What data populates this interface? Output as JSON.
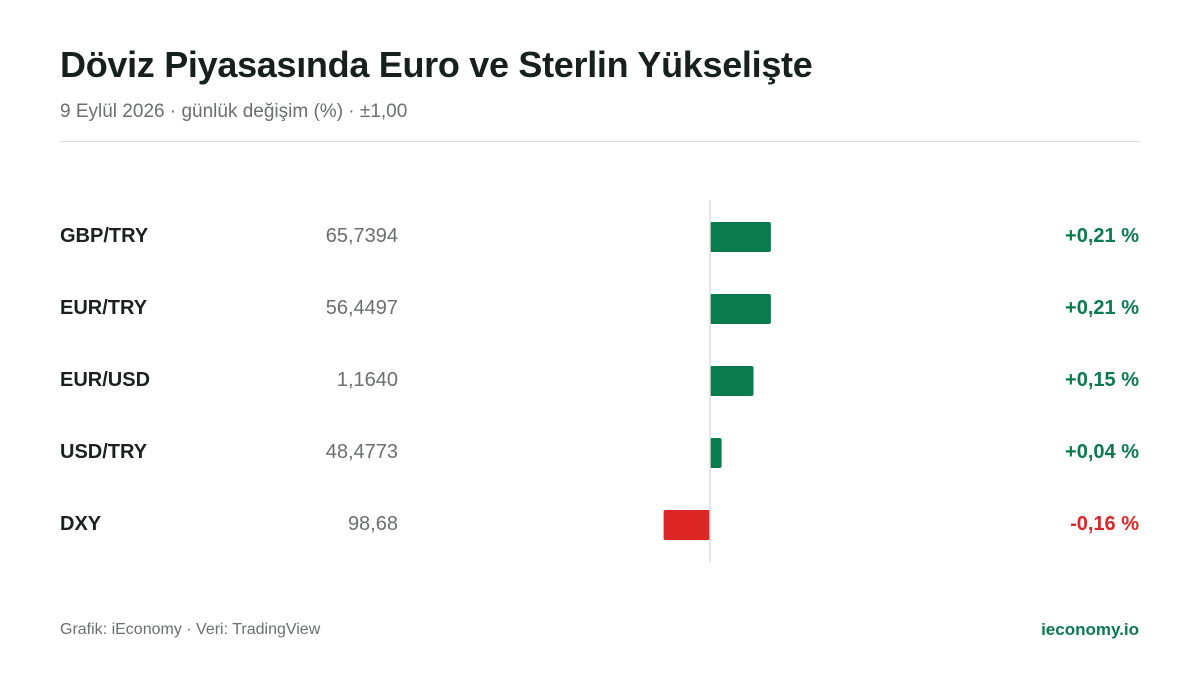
{
  "header": {
    "title": "Döviz Piyasasında Euro ve Sterlin Yükselişte",
    "subtitle": "9 Eylül 2026 · günlük değişim (%) · ±1,00"
  },
  "footer": {
    "credit": "Grafik: iEconomy · Veri: TradingView",
    "brand": "ieconomy.io"
  },
  "colors": {
    "positive": "#0b7a4f",
    "negative": "#dc2626",
    "axis": "#dcdedd"
  },
  "chart_data": {
    "type": "bar",
    "orientation": "horizontal",
    "categories": [
      "GBP/TRY",
      "EUR/TRY",
      "EUR/USD",
      "USD/TRY",
      "DXY"
    ],
    "prices": [
      "65,7394",
      "56,4497",
      "1,1640",
      "48,4773",
      "98,68"
    ],
    "values": [
      0.21,
      0.21,
      0.15,
      0.04,
      -0.16
    ],
    "value_labels": [
      "+0,21 %",
      "+0,21 %",
      "+0,15 %",
      "+0,04 %",
      "-0,16 %"
    ],
    "xlim": [
      -1,
      1
    ],
    "grid": false,
    "legend": "none"
  }
}
